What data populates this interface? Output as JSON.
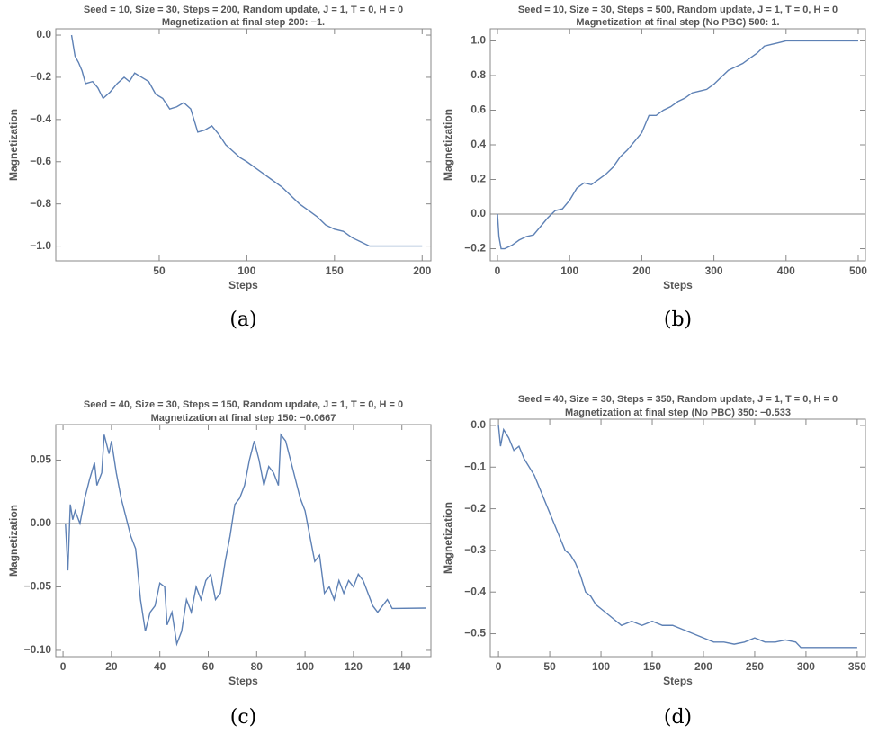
{
  "chart_data": [
    {
      "type": "line",
      "title": "Seed = 10, Size = 30, Steps = 200, Random update, J = 1, T = 0, H = 0",
      "subtitle": "Magnetization at final step 200: −1.",
      "xlabel": "Steps",
      "ylabel": "Magnetization",
      "caption": "(a)",
      "zero_line": false,
      "x": [
        0,
        2,
        4,
        6,
        8,
        12,
        15,
        18,
        22,
        26,
        30,
        33,
        36,
        40,
        44,
        48,
        52,
        56,
        60,
        64,
        68,
        72,
        76,
        80,
        84,
        88,
        92,
        96,
        100,
        105,
        110,
        115,
        120,
        125,
        130,
        135,
        140,
        145,
        150,
        155,
        160,
        165,
        170,
        200
      ],
      "series": [
        {
          "color": "#5e81b5",
          "values": [
            0,
            -0.1,
            -0.13,
            -0.17,
            -0.23,
            -0.22,
            -0.25,
            -0.3,
            -0.27,
            -0.23,
            -0.2,
            -0.22,
            -0.18,
            -0.2,
            -0.22,
            -0.28,
            -0.3,
            -0.35,
            -0.34,
            -0.32,
            -0.35,
            -0.46,
            -0.45,
            -0.43,
            -0.47,
            -0.52,
            -0.55,
            -0.58,
            -0.6,
            -0.63,
            -0.66,
            -0.69,
            -0.72,
            -0.76,
            -0.8,
            -0.83,
            -0.86,
            -0.9,
            -0.92,
            -0.93,
            -0.96,
            -0.98,
            -1,
            -1
          ]
        }
      ],
      "xlim": [
        -9,
        205
      ],
      "xticks": [
        50,
        100,
        150,
        200
      ],
      "ylim": [
        -1.07,
        0.03
      ],
      "yticks": [
        {
          "value": -1.0,
          "label": "−1.0"
        },
        {
          "value": -0.8,
          "label": "−0.8"
        },
        {
          "value": -0.6,
          "label": "−0.6"
        },
        {
          "value": -0.4,
          "label": "−0.4"
        },
        {
          "value": -0.2,
          "label": "−0.2"
        },
        {
          "value": 0,
          "label": "0.0"
        }
      ]
    },
    {
      "type": "line",
      "title": "Seed = 10, Size = 30, Steps = 500, Random update, J = 1, T = 0, H = 0",
      "subtitle": "Magnetization at final step (No PBC) 500: 1.",
      "xlabel": "Steps",
      "ylabel": "Magnetization",
      "caption": "(b)",
      "zero_line": true,
      "x": [
        0,
        2,
        5,
        10,
        20,
        30,
        40,
        50,
        60,
        70,
        80,
        90,
        100,
        110,
        120,
        130,
        140,
        150,
        160,
        170,
        180,
        190,
        200,
        210,
        220,
        230,
        240,
        250,
        260,
        270,
        280,
        290,
        300,
        310,
        320,
        330,
        340,
        350,
        360,
        370,
        380,
        390,
        400,
        500
      ],
      "series": [
        {
          "color": "#5e81b5",
          "values": [
            0,
            -0.13,
            -0.2,
            -0.2,
            -0.18,
            -0.15,
            -0.13,
            -0.12,
            -0.07,
            -0.02,
            0.02,
            0.03,
            0.08,
            0.15,
            0.18,
            0.17,
            0.2,
            0.23,
            0.27,
            0.33,
            0.37,
            0.42,
            0.47,
            0.57,
            0.57,
            0.6,
            0.62,
            0.65,
            0.67,
            0.7,
            0.71,
            0.72,
            0.75,
            0.79,
            0.83,
            0.85,
            0.87,
            0.9,
            0.93,
            0.97,
            0.98,
            0.99,
            1,
            1
          ]
        }
      ],
      "xlim": [
        -10,
        510
      ],
      "xticks": [
        0,
        100,
        200,
        300,
        400,
        500
      ],
      "ylim": [
        -0.27,
        1.07
      ],
      "yticks": [
        {
          "value": -0.2,
          "label": "−0.2"
        },
        {
          "value": 0,
          "label": "0.0"
        },
        {
          "value": 0.2,
          "label": "0.2"
        },
        {
          "value": 0.4,
          "label": "0.4"
        },
        {
          "value": 0.6,
          "label": "0.6"
        },
        {
          "value": 0.8,
          "label": "0.8"
        },
        {
          "value": 1.0,
          "label": "1.0"
        }
      ]
    },
    {
      "type": "line",
      "title": "Seed = 40, Size = 30, Steps = 150, Random update, J = 1, T = 0, H = 0",
      "subtitle": "Magnetization at final step 150: −0.0667",
      "xlabel": "Steps",
      "ylabel": "Magnetization",
      "caption": "(c)",
      "zero_line": true,
      "x": [
        1,
        2,
        3,
        4,
        5,
        7,
        9,
        11,
        13,
        14,
        16,
        17,
        19,
        20,
        22,
        24,
        26,
        28,
        30,
        32,
        34,
        36,
        38,
        40,
        42,
        43,
        45,
        47,
        49,
        51,
        53,
        55,
        57,
        59,
        61,
        63,
        65,
        67,
        69,
        71,
        73,
        75,
        77,
        79,
        81,
        83,
        85,
        87,
        89,
        90,
        92,
        94,
        96,
        98,
        100,
        102,
        104,
        106,
        108,
        110,
        112,
        114,
        116,
        118,
        120,
        122,
        124,
        126,
        128,
        130,
        132,
        134,
        136,
        150
      ],
      "series": [
        {
          "color": "#5e81b5",
          "values": [
            0,
            -0.037,
            0.015,
            0.003,
            0.01,
            0,
            0.02,
            0.035,
            0.048,
            0.03,
            0.04,
            0.07,
            0.055,
            0.065,
            0.04,
            0.02,
            0.005,
            -0.01,
            -0.02,
            -0.06,
            -0.085,
            -0.07,
            -0.065,
            -0.047,
            -0.05,
            -0.08,
            -0.07,
            -0.095,
            -0.085,
            -0.06,
            -0.07,
            -0.05,
            -0.06,
            -0.045,
            -0.04,
            -0.06,
            -0.055,
            -0.03,
            -0.01,
            0.015,
            0.02,
            0.03,
            0.05,
            0.065,
            0.05,
            0.03,
            0.045,
            0.04,
            0.03,
            0.07,
            0.065,
            0.05,
            0.035,
            0.02,
            0.01,
            -0.01,
            -0.03,
            -0.025,
            -0.055,
            -0.05,
            -0.06,
            -0.045,
            -0.055,
            -0.045,
            -0.05,
            -0.04,
            -0.045,
            -0.055,
            -0.065,
            -0.07,
            -0.065,
            -0.06,
            -0.067,
            -0.0667
          ]
        }
      ],
      "xlim": [
        -3,
        152
      ],
      "xticks": [
        0,
        20,
        40,
        60,
        80,
        100,
        120,
        140
      ],
      "ylim": [
        -0.105,
        0.078
      ],
      "yticks": [
        {
          "value": -0.1,
          "label": "−0.10"
        },
        {
          "value": -0.05,
          "label": "−0.05"
        },
        {
          "value": 0,
          "label": "0.00"
        },
        {
          "value": 0.05,
          "label": "0.05"
        }
      ]
    },
    {
      "type": "line",
      "title": "Seed = 40, Size = 30, Steps = 350, Random update, J = 1, T = 0, H = 0",
      "subtitle": "Magnetization at final step (No PBC) 350: −0.533",
      "xlabel": "Steps",
      "ylabel": "Magnetization",
      "caption": "(d)",
      "zero_line": false,
      "x": [
        0,
        2,
        5,
        10,
        15,
        20,
        25,
        30,
        35,
        40,
        45,
        50,
        55,
        60,
        65,
        70,
        75,
        80,
        85,
        90,
        95,
        100,
        110,
        120,
        130,
        140,
        150,
        160,
        170,
        180,
        190,
        200,
        210,
        220,
        230,
        240,
        250,
        260,
        270,
        280,
        290,
        295,
        350
      ],
      "series": [
        {
          "color": "#5e81b5",
          "values": [
            0,
            -0.05,
            -0.01,
            -0.03,
            -0.06,
            -0.05,
            -0.08,
            -0.1,
            -0.12,
            -0.15,
            -0.18,
            -0.21,
            -0.24,
            -0.27,
            -0.3,
            -0.31,
            -0.33,
            -0.36,
            -0.4,
            -0.41,
            -0.43,
            -0.44,
            -0.46,
            -0.48,
            -0.47,
            -0.48,
            -0.47,
            -0.48,
            -0.48,
            -0.49,
            -0.5,
            -0.51,
            -0.52,
            -0.52,
            -0.525,
            -0.52,
            -0.51,
            -0.52,
            -0.52,
            -0.515,
            -0.52,
            -0.533,
            -0.533
          ]
        }
      ],
      "xlim": [
        -8,
        358
      ],
      "xticks": [
        0,
        50,
        100,
        150,
        200,
        250,
        300,
        350
      ],
      "ylim": [
        -0.555,
        0.015
      ],
      "yticks": [
        {
          "value": -0.5,
          "label": "−0.5"
        },
        {
          "value": -0.4,
          "label": "−0.4"
        },
        {
          "value": -0.3,
          "label": "−0.3"
        },
        {
          "value": -0.2,
          "label": "−0.2"
        },
        {
          "value": -0.1,
          "label": "−0.1"
        },
        {
          "value": 0,
          "label": "0.0"
        }
      ]
    }
  ]
}
